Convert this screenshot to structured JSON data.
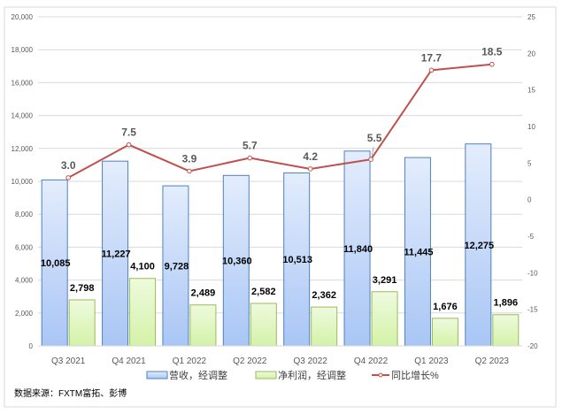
{
  "chart_data": {
    "type": "bar+line",
    "categories": [
      "Q3 2021",
      "Q4 2021",
      "Q1 2022",
      "Q2 2022",
      "Q3 2022",
      "Q4 2022",
      "Q1 2023",
      "Q2 2023"
    ],
    "series": [
      {
        "name": "营收，经调整",
        "type": "bar",
        "axis": "left",
        "color": "#c5d9f8",
        "values": [
          10085,
          11227,
          9728,
          10360,
          10513,
          11840,
          11445,
          12275
        ],
        "labels": [
          "10,085",
          "11,227",
          "9,728",
          "10,360",
          "10,513",
          "11,840",
          "11,445",
          "12,275"
        ]
      },
      {
        "name": "净利润，经调整",
        "type": "bar",
        "axis": "left",
        "color": "#e6f7c8",
        "values": [
          2798,
          4100,
          2489,
          2582,
          2362,
          3291,
          1676,
          1896
        ],
        "labels": [
          "2,798",
          "4,100",
          "2,489",
          "2,582",
          "2,362",
          "3,291",
          "1,676",
          "1,896"
        ]
      },
      {
        "name": "同比增长%",
        "type": "line",
        "axis": "right",
        "color": "#c0504d",
        "values": [
          3.0,
          7.5,
          3.9,
          5.7,
          4.2,
          5.5,
          17.7,
          18.5
        ],
        "labels": [
          "3.0",
          "7.5",
          "3.9",
          "5.7",
          "4.2",
          "5.5",
          "17.7",
          "18.5"
        ]
      }
    ],
    "ylim_left": [
      0,
      20000
    ],
    "yticks_left": [
      "0",
      "2,000",
      "4,000",
      "6,000",
      "8,000",
      "10,000",
      "12,000",
      "14,000",
      "16,000",
      "18,000",
      "20,000"
    ],
    "ylim_right": [
      -20,
      25
    ],
    "yticks_right": [
      "-20",
      "-15",
      "-10",
      "-5",
      "0",
      "5",
      "10",
      "15",
      "20",
      "25"
    ],
    "grid": true,
    "legend": "bottom"
  },
  "source_note": "数据来源：FXTM富拓、彭博"
}
